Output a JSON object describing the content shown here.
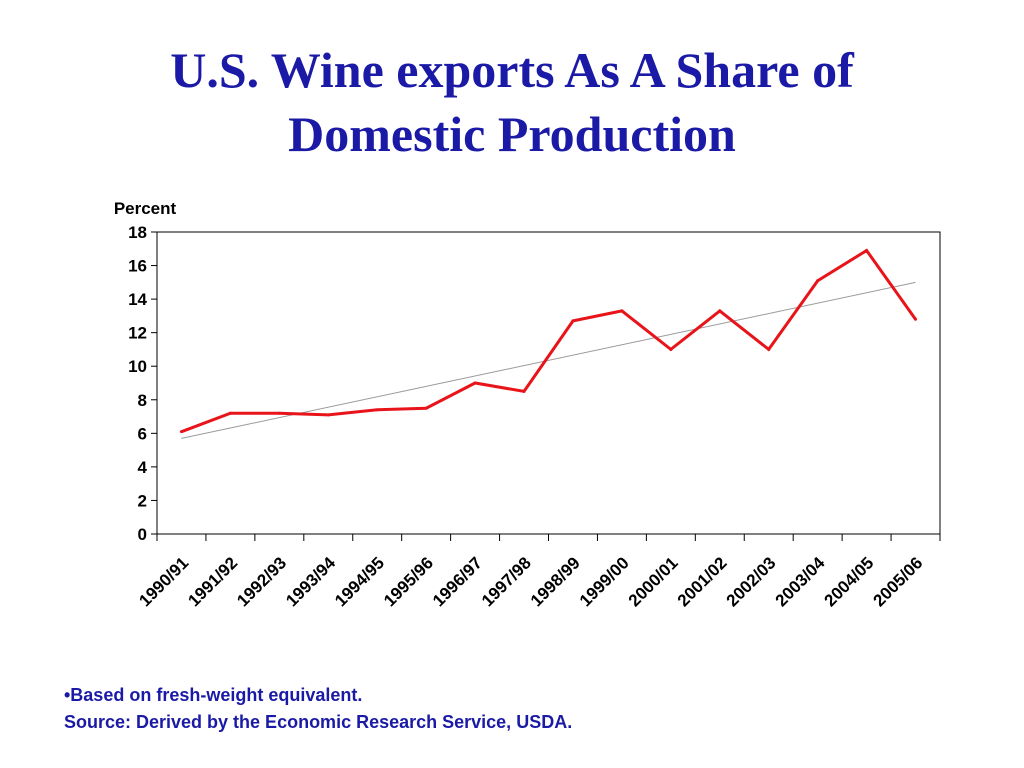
{
  "title": {
    "line1": "U.S. Wine exports As A Share of",
    "line2": "Domestic Production"
  },
  "chart_data": {
    "type": "line",
    "ylabel": "Percent",
    "xlabel": "",
    "ylim": [
      0,
      18
    ],
    "yticks": [
      0,
      2,
      4,
      6,
      8,
      10,
      12,
      14,
      16,
      18
    ],
    "grid": false,
    "categories": [
      "1990/91",
      "1991/92",
      "1992/93",
      "1993/94",
      "1994/95",
      "1995/96",
      "1996/97",
      "1997/98",
      "1998/99",
      "1999/00",
      "2000/01",
      "2001/02",
      "2002/03",
      "2003/04",
      "2004/05",
      "2005/06"
    ],
    "series": [
      {
        "values": [
          6.1,
          7.2,
          7.2,
          7.1,
          7.4,
          7.5,
          9.0,
          8.5,
          12.7,
          13.3,
          11.0,
          13.3,
          11.0,
          15.1,
          16.9,
          12.8
        ],
        "color": "#e8141a"
      }
    ],
    "trendline": {
      "start": 5.7,
      "end": 15.0,
      "color": "#9a9a9a"
    }
  },
  "footnote": {
    "line1": "•Based on fresh-weight equivalent.",
    "line2": "Source: Derived by the Economic Research Service, USDA."
  }
}
